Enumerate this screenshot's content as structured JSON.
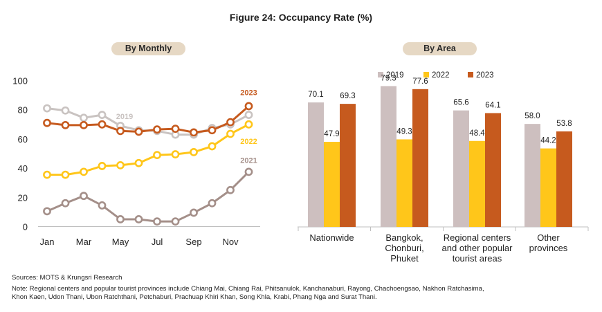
{
  "title": "Figure 24: Occupancy Rate (%)",
  "left_panel_label": "By Monthly",
  "right_panel_label": "By Area",
  "sources": "Sources: MOTS &  Krungsri Research",
  "note_line1": "Note: Regional centers and popular tourist provinces include Chiang Mai, Chiang Rai, Phitsanulok, Kanchanaburi, Rayong, Chachoengsao, Nakhon Ratchasima,",
  "note_line2": " Khon Kaen, Udon Thani, Ubon Ratchthani, Petchaburi, Prachuap Khiri Khan, Song Khla, Krabi, Phang Nga and Surat Thani.",
  "chart_data": [
    {
      "type": "line",
      "title": "By Monthly",
      "x": [
        "Jan",
        "Feb",
        "Mar",
        "Apr",
        "May",
        "Jun",
        "Jul",
        "Aug",
        "Sep",
        "Oct",
        "Nov",
        "Dec"
      ],
      "xtick_labels": [
        "Jan",
        "",
        "Mar",
        "",
        "May",
        "",
        "Jul",
        "",
        "Sep",
        "",
        "Nov",
        ""
      ],
      "yticks": [
        0,
        20,
        40,
        60,
        80,
        100
      ],
      "ylim": [
        0,
        100
      ],
      "grid": false,
      "series": [
        {
          "name": "2019",
          "color": "#c9c3c1",
          "values": [
            81,
            79.5,
            74.5,
            76.5,
            69,
            66,
            65.5,
            63,
            63,
            67.5,
            70,
            76.5
          ]
        },
        {
          "name": "2021",
          "color": "#a48f89",
          "values": [
            10.5,
            16,
            21,
            14.5,
            5,
            5,
            3.5,
            3.5,
            9.5,
            16,
            25,
            37.5
          ]
        },
        {
          "name": "2022",
          "color": "#ffc61a",
          "values": [
            35.5,
            35.5,
            37.5,
            41.5,
            42,
            43.5,
            49,
            49.5,
            51,
            55,
            63.5,
            70
          ]
        },
        {
          "name": "2023",
          "color": "#c65a1e",
          "values": [
            71,
            69.5,
            69.5,
            70,
            65.5,
            65,
            66.5,
            67,
            64.5,
            66,
            71.5,
            82.5
          ]
        }
      ]
    },
    {
      "type": "bar",
      "title": "By Area",
      "categories": [
        "Nationwide",
        "Bangkok, Chonburi, Phuket",
        "Regional centers and other popular tourist areas",
        "Other provinces"
      ],
      "category_lines": [
        [
          "Nationwide"
        ],
        [
          "Bangkok,",
          "Chonburi,",
          "Phuket"
        ],
        [
          "Regional centers",
          "and other popular",
          "tourist areas"
        ],
        [
          "Other",
          "provinces"
        ]
      ],
      "legend_position": "top",
      "ylim": [
        0,
        90
      ],
      "series": [
        {
          "name": "2019",
          "color": "#cdbfbf",
          "values": [
            70.1,
            79.3,
            65.6,
            58.0
          ],
          "labels": [
            "70.1",
            "79.3",
            "65.6",
            "58.0"
          ]
        },
        {
          "name": "2022",
          "color": "#ffc61a",
          "values": [
            47.9,
            49.3,
            48.4,
            44.2
          ],
          "labels": [
            "47.9",
            "49.3",
            "48.4",
            "44.2"
          ]
        },
        {
          "name": "2023",
          "color": "#c65a1e",
          "values": [
            69.3,
            77.6,
            64.1,
            53.8
          ],
          "labels": [
            "69.3",
            "77.6",
            "64.1",
            "53.8"
          ]
        }
      ]
    }
  ]
}
